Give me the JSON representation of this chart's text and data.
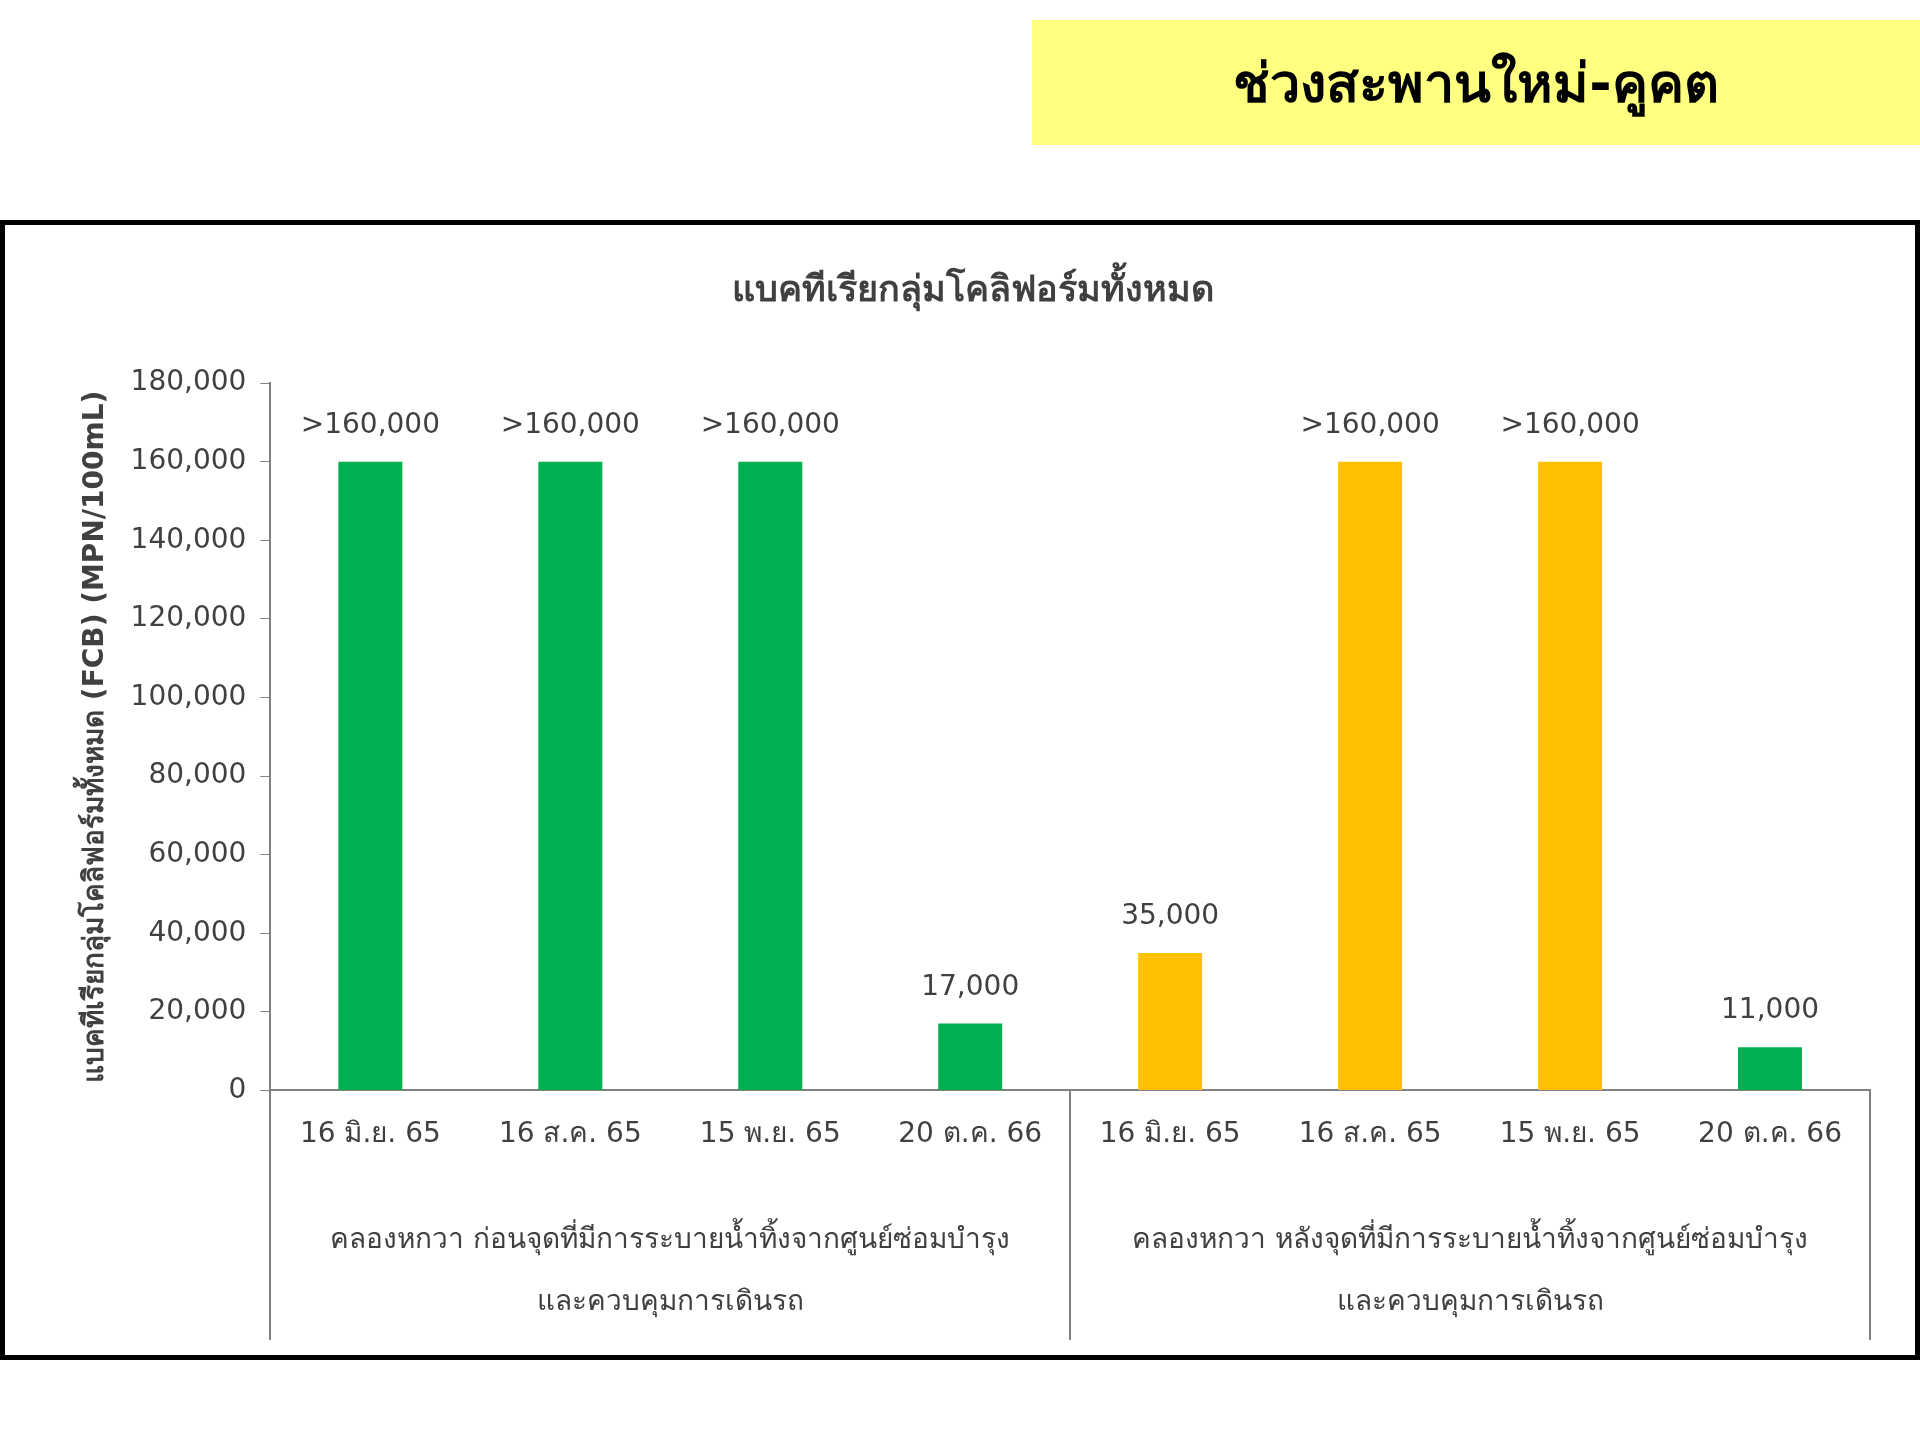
{
  "chart_data": {
    "type": "bar",
    "title": "ช่วงสะพานใหม่-คูคต",
    "subtitle": "แบคทีเรียกลุ่มโคลิฟอร์มทั้งหมด",
    "ylabel": "แบคทีเรียกลุ่มโคลิฟอร์มทั้งหมด (FCB) (MPN/100mL)",
    "categories": [
      "16 มิ.ย. 65",
      "16 ส.ค. 65",
      "15 พ.ย. 65",
      "20 ต.ค. 66",
      "16 มิ.ย. 65",
      "16 ส.ค. 65",
      "15 พ.ย. 65",
      "20 ต.ค. 66"
    ],
    "values": [
      160000,
      160000,
      160000,
      17000,
      35000,
      160000,
      160000,
      11000
    ],
    "colors": [
      "#00b050",
      "#00b050",
      "#00b050",
      "#00b050",
      "#ffc000",
      "#ffc000",
      "#ffc000",
      "#00b050"
    ],
    "value_labels": [
      ">160,000",
      ">160,000",
      ">160,000",
      "17,000",
      "35,000",
      ">160,000",
      ">160,000",
      "11,000"
    ],
    "ylim": [
      0,
      180000
    ],
    "yticks": [
      0,
      {
        "value": 20000,
        "label": "20,000"
      },
      {
        "value": 40000,
        "label": "40,000"
      },
      {
        "value": 60000,
        "label": "60,000"
      },
      {
        "value": 80000,
        "label": "80,000"
      },
      {
        "value": 100000,
        "label": "100,000"
      },
      {
        "value": 120000,
        "label": "120,000"
      },
      {
        "value": 140000,
        "label": "140,000"
      },
      {
        "value": 160000,
        "label": "160,000"
      },
      {
        "value": 180000,
        "label": "180,000"
      }
    ],
    "grid": false,
    "legend": false,
    "annotations": [
      "คลองหกวา ก่อนจุดที่มีการระบายน้ำทิ้งจากศูนย์ซ่อมบำรุง\nและควบคุมการเดินรถ",
      "คลองหกวา หลังจุดที่มีการระบายน้ำทิ้งจากศูนย์ซ่อมบำรุง\nและควบคุมการเดินรถ"
    ]
  }
}
